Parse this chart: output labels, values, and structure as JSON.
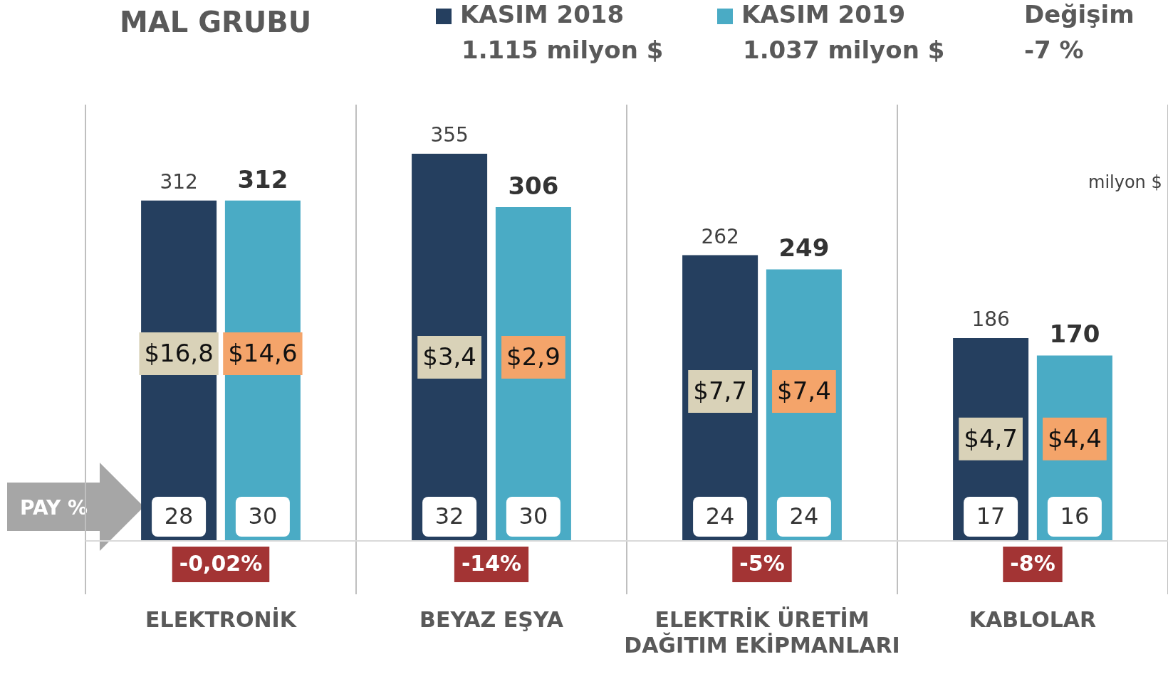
{
  "chart_data": {
    "type": "bar",
    "title": "MAL GRUBU",
    "categories": [
      "ELEKTRONİK",
      "BEYAZ EŞYA",
      "ELEKTRİK ÜRETİM DAĞITIM EKİPMANLARI",
      "KABLOLAR"
    ],
    "series": [
      {
        "name": "KASIM 2018",
        "color": "#253f5f",
        "values": [
          312,
          355,
          262,
          186
        ]
      },
      {
        "name": "KASIM 2019",
        "color": "#4aabc5",
        "values": [
          312,
          306,
          249,
          170
        ]
      }
    ],
    "data_labels": true,
    "legend": "top",
    "grid": "x",
    "tick_labels": "x",
    "annotations": [
      "1.115 milyon $",
      "1.037 milyon $",
      "Değişim",
      "-7 %",
      "milyon $",
      "PAY %",
      "$16,8",
      "$14,6",
      "28",
      "30",
      "-0,02%",
      "$3,4",
      "$2,9",
      "32",
      "30",
      "-14%",
      "$7,7",
      "$7,4",
      "24",
      "24",
      "-5%",
      "$4,7",
      "$4,4",
      "17",
      "16",
      "-8%"
    ]
  }
}
